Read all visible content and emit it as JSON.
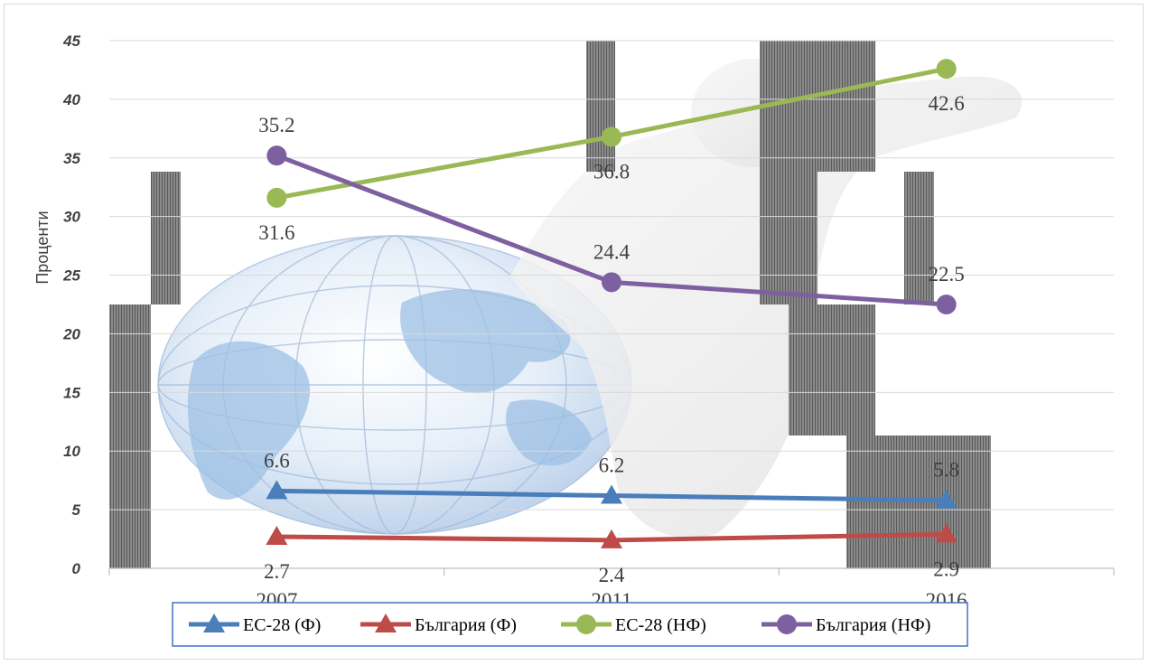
{
  "chart_data": {
    "type": "line",
    "title": "",
    "xlabel": "",
    "ylabel": "Проценти",
    "ylim": [
      0,
      45
    ],
    "yticks": [
      "0",
      "5",
      "10",
      "15",
      "20",
      "25",
      "30",
      "35",
      "40",
      "45"
    ],
    "categories": [
      "2007",
      "2011",
      "2016"
    ],
    "grid": true,
    "legend_position": "bottom",
    "series": [
      {
        "name": "ЕС-28 (Ф)",
        "color": "#4a7ebb",
        "marker": "triangle",
        "values": [
          6.6,
          6.2,
          5.8
        ],
        "labels": [
          "6.6",
          "6.2",
          "5.8"
        ],
        "label_side": "above"
      },
      {
        "name": "България (Ф)",
        "color": "#be4b48",
        "marker": "triangle",
        "values": [
          2.7,
          2.4,
          2.9
        ],
        "labels": [
          "2.7",
          "2.4",
          "2.9"
        ],
        "label_side": "below"
      },
      {
        "name": "ЕС-28 (НФ)",
        "color": "#98b954",
        "marker": "circle",
        "values": [
          31.6,
          36.8,
          42.6
        ],
        "labels": [
          "31.6",
          "36.8",
          "42.6"
        ],
        "label_side": "below"
      },
      {
        "name": "България (НФ)",
        "color": "#7d60a0",
        "marker": "circle",
        "values": [
          35.2,
          24.4,
          22.5
        ],
        "labels": [
          "35.2",
          "24.4",
          "22.5"
        ],
        "label_side": "above"
      }
    ]
  }
}
